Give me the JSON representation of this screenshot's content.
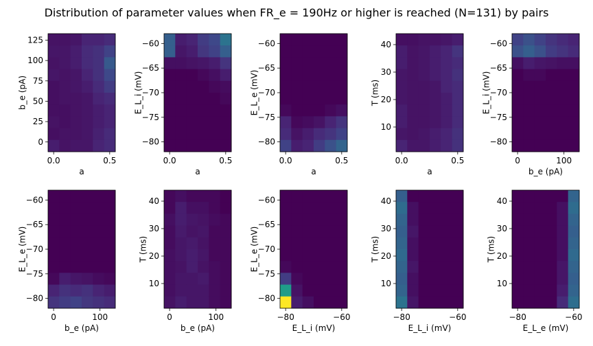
{
  "title": "Distribution of parameter values when FR_e = 190Hz or higher is reached (N=131) by pairs",
  "colormap": [
    "#440154",
    "#482878",
    "#3e4989",
    "#31688e",
    "#26828e",
    "#1f9e89",
    "#35b779",
    "#6ece58",
    "#b5de2b",
    "#fde725"
  ],
  "chart_data": [
    {
      "type": "heatmap",
      "xlabel": "a",
      "ylabel": "b_e (pA)",
      "xlim": [
        -0.05,
        0.55
      ],
      "ylim": [
        -12,
        133
      ],
      "xticks": [
        0.0,
        0.5
      ],
      "xticklabels": [
        "0.0",
        "0.5"
      ],
      "yticks": [
        0,
        25,
        50,
        75,
        100,
        125
      ],
      "yticklabels": [
        "0",
        "25",
        "50",
        "75",
        "100",
        "125"
      ],
      "nx": 6,
      "ny": 10,
      "values": [
        [
          0.05,
          0.05,
          0.06,
          0.1,
          0.1,
          0.12
        ],
        [
          0.06,
          0.06,
          0.08,
          0.12,
          0.14,
          0.2
        ],
        [
          0.05,
          0.06,
          0.08,
          0.12,
          0.14,
          0.28
        ],
        [
          0.06,
          0.05,
          0.06,
          0.1,
          0.14,
          0.22
        ],
        [
          0.04,
          0.05,
          0.06,
          0.08,
          0.12,
          0.18
        ],
        [
          0.04,
          0.05,
          0.05,
          0.06,
          0.1,
          0.12
        ],
        [
          0.04,
          0.04,
          0.05,
          0.06,
          0.08,
          0.1
        ],
        [
          0.05,
          0.04,
          0.05,
          0.06,
          0.08,
          0.1
        ],
        [
          0.04,
          0.05,
          0.05,
          0.06,
          0.09,
          0.12
        ],
        [
          0.08,
          0.05,
          0.06,
          0.06,
          0.1,
          0.12
        ]
      ]
    },
    {
      "type": "heatmap",
      "xlabel": "a",
      "ylabel": "E_L_i (mV)",
      "xlim": [
        -0.05,
        0.55
      ],
      "ylim": [
        -82,
        -58
      ],
      "xticks": [
        0.0,
        0.5
      ],
      "xticklabels": [
        "0.0",
        "0.5"
      ],
      "yticks": [
        -80,
        -75,
        -70,
        -65,
        -60
      ],
      "yticklabels": [
        "−80",
        "−75",
        "−70",
        "−65",
        "−60"
      ],
      "nx": 6,
      "ny": 10,
      "values": [
        [
          0.3,
          0.08,
          0.1,
          0.18,
          0.22,
          0.38
        ],
        [
          0.3,
          0.06,
          0.08,
          0.16,
          0.2,
          0.3
        ],
        [
          0.04,
          0.04,
          0.05,
          0.06,
          0.08,
          0.15
        ],
        [
          0.0,
          0.0,
          0.0,
          0.02,
          0.04,
          0.08
        ],
        [
          0.0,
          0.0,
          0.0,
          0.0,
          0.02,
          0.03
        ],
        [
          0.0,
          0.0,
          0.0,
          0.0,
          0.0,
          0.02
        ],
        [
          0.0,
          0.0,
          0.0,
          0.0,
          0.0,
          0.0
        ],
        [
          0.0,
          0.0,
          0.0,
          0.0,
          0.0,
          0.0
        ],
        [
          0.0,
          0.0,
          0.0,
          0.0,
          0.0,
          0.0
        ],
        [
          0.0,
          0.0,
          0.0,
          0.0,
          0.0,
          0.0
        ]
      ]
    },
    {
      "type": "heatmap",
      "xlabel": "a",
      "ylabel": "E_L_e (mV)",
      "xlim": [
        -0.05,
        0.55
      ],
      "ylim": [
        -82,
        -58
      ],
      "xticks": [
        0.0,
        0.5
      ],
      "xticklabels": [
        "0.0",
        "0.5"
      ],
      "yticks": [
        -80,
        -75,
        -70,
        -65,
        -60
      ],
      "yticklabels": [
        "−80",
        "−75",
        "−70",
        "−65",
        "−60"
      ],
      "nx": 6,
      "ny": 10,
      "values": [
        [
          0.0,
          0.0,
          0.0,
          0.0,
          0.0,
          0.0
        ],
        [
          0.0,
          0.0,
          0.0,
          0.0,
          0.0,
          0.0
        ],
        [
          0.0,
          0.0,
          0.0,
          0.0,
          0.0,
          0.0
        ],
        [
          0.0,
          0.0,
          0.0,
          0.0,
          0.0,
          0.0
        ],
        [
          0.0,
          0.0,
          0.0,
          0.0,
          0.0,
          0.0
        ],
        [
          0.0,
          0.0,
          0.0,
          0.0,
          0.0,
          0.0
        ],
        [
          0.02,
          0.0,
          0.0,
          0.0,
          0.02,
          0.04
        ],
        [
          0.1,
          0.02,
          0.03,
          0.05,
          0.1,
          0.15
        ],
        [
          0.12,
          0.05,
          0.08,
          0.12,
          0.15,
          0.2
        ],
        [
          0.2,
          0.08,
          0.1,
          0.18,
          0.25,
          0.32
        ]
      ]
    },
    {
      "type": "heatmap",
      "xlabel": "a",
      "ylabel": "T (ms)",
      "xlim": [
        -0.05,
        0.55
      ],
      "ylim": [
        1,
        44
      ],
      "xticks": [
        0.0,
        0.5
      ],
      "xticklabels": [
        "0.0",
        "0.5"
      ],
      "yticks": [
        10,
        20,
        30,
        40
      ],
      "yticklabels": [
        "10",
        "20",
        "30",
        "40"
      ],
      "nx": 6,
      "ny": 10,
      "values": [
        [
          0.04,
          0.04,
          0.05,
          0.05,
          0.06,
          0.08
        ],
        [
          0.08,
          0.05,
          0.06,
          0.08,
          0.1,
          0.15
        ],
        [
          0.08,
          0.05,
          0.06,
          0.08,
          0.1,
          0.12
        ],
        [
          0.06,
          0.05,
          0.06,
          0.08,
          0.1,
          0.14
        ],
        [
          0.06,
          0.05,
          0.05,
          0.06,
          0.1,
          0.12
        ],
        [
          0.06,
          0.05,
          0.05,
          0.06,
          0.08,
          0.12
        ],
        [
          0.08,
          0.05,
          0.05,
          0.06,
          0.08,
          0.12
        ],
        [
          0.08,
          0.05,
          0.05,
          0.06,
          0.08,
          0.12
        ],
        [
          0.06,
          0.05,
          0.06,
          0.08,
          0.1,
          0.14
        ],
        [
          0.1,
          0.06,
          0.06,
          0.08,
          0.1,
          0.14
        ]
      ]
    },
    {
      "type": "heatmap",
      "xlabel": "b_e (pA)",
      "ylabel": "E_L_i (mV)",
      "xlim": [
        -12,
        133
      ],
      "ylim": [
        -82,
        -58
      ],
      "xticks": [
        0,
        100
      ],
      "xticklabels": [
        "0",
        "100"
      ],
      "yticks": [
        -80,
        -75,
        -70,
        -65,
        -60
      ],
      "yticklabels": [
        "−80",
        "−75",
        "−70",
        "−65",
        "−60"
      ],
      "nx": 6,
      "ny": 10,
      "values": [
        [
          0.2,
          0.25,
          0.2,
          0.15,
          0.12,
          0.1
        ],
        [
          0.25,
          0.3,
          0.25,
          0.18,
          0.15,
          0.12
        ],
        [
          0.04,
          0.08,
          0.06,
          0.05,
          0.04,
          0.04
        ],
        [
          0.0,
          0.02,
          0.02,
          0.0,
          0.0,
          0.0
        ],
        [
          0.0,
          0.0,
          0.0,
          0.0,
          0.0,
          0.0
        ],
        [
          0.0,
          0.0,
          0.0,
          0.0,
          0.0,
          0.0
        ],
        [
          0.0,
          0.0,
          0.0,
          0.0,
          0.0,
          0.0
        ],
        [
          0.0,
          0.0,
          0.0,
          0.0,
          0.0,
          0.0
        ],
        [
          0.0,
          0.0,
          0.0,
          0.0,
          0.0,
          0.0
        ],
        [
          0.0,
          0.0,
          0.0,
          0.0,
          0.0,
          0.0
        ]
      ]
    },
    {
      "type": "heatmap",
      "xlabel": "b_e (pA)",
      "ylabel": "E_L_e (mV)",
      "xlim": [
        -12,
        133
      ],
      "ylim": [
        -82,
        -58
      ],
      "xticks": [
        0,
        100
      ],
      "xticklabels": [
        "0",
        "100"
      ],
      "yticks": [
        -80,
        -75,
        -70,
        -65,
        -60
      ],
      "yticklabels": [
        "−80",
        "−75",
        "−70",
        "−65",
        "−60"
      ],
      "nx": 6,
      "ny": 10,
      "values": [
        [
          0.0,
          0.0,
          0.0,
          0.0,
          0.0,
          0.0
        ],
        [
          0.0,
          0.0,
          0.0,
          0.0,
          0.0,
          0.0
        ],
        [
          0.0,
          0.0,
          0.0,
          0.0,
          0.0,
          0.0
        ],
        [
          0.0,
          0.0,
          0.0,
          0.0,
          0.0,
          0.0
        ],
        [
          0.0,
          0.0,
          0.0,
          0.0,
          0.0,
          0.0
        ],
        [
          0.0,
          0.0,
          0.0,
          0.0,
          0.0,
          0.0
        ],
        [
          0.0,
          0.0,
          0.0,
          0.0,
          0.0,
          0.0
        ],
        [
          0.02,
          0.08,
          0.06,
          0.05,
          0.03,
          0.02
        ],
        [
          0.1,
          0.14,
          0.12,
          0.14,
          0.1,
          0.08
        ],
        [
          0.15,
          0.18,
          0.2,
          0.16,
          0.14,
          0.12
        ]
      ]
    },
    {
      "type": "heatmap",
      "xlabel": "b_e (pA)",
      "ylabel": "T (ms)",
      "xlim": [
        -12,
        133
      ],
      "ylim": [
        1,
        44
      ],
      "xticks": [
        0,
        100
      ],
      "xticklabels": [
        "0",
        "100"
      ],
      "yticks": [
        10,
        20,
        30,
        40
      ],
      "yticklabels": [
        "10",
        "20",
        "30",
        "40"
      ],
      "nx": 6,
      "ny": 10,
      "values": [
        [
          0.02,
          0.04,
          0.02,
          0.02,
          0.02,
          0.0
        ],
        [
          0.02,
          0.08,
          0.04,
          0.04,
          0.02,
          0.0
        ],
        [
          0.04,
          0.08,
          0.06,
          0.05,
          0.03,
          0.02
        ],
        [
          0.03,
          0.07,
          0.05,
          0.06,
          0.02,
          0.02
        ],
        [
          0.03,
          0.06,
          0.07,
          0.05,
          0.02,
          0.02
        ],
        [
          0.04,
          0.06,
          0.08,
          0.06,
          0.02,
          0.02
        ],
        [
          0.04,
          0.05,
          0.08,
          0.05,
          0.03,
          0.02
        ],
        [
          0.04,
          0.06,
          0.06,
          0.07,
          0.03,
          0.02
        ],
        [
          0.04,
          0.06,
          0.06,
          0.06,
          0.03,
          0.02
        ],
        [
          0.05,
          0.08,
          0.06,
          0.06,
          0.03,
          0.02
        ]
      ]
    },
    {
      "type": "heatmap",
      "xlabel": "E_L_i (mV)",
      "ylabel": "E_L_e (mV)",
      "xlim": [
        -82,
        -58
      ],
      "ylim": [
        -82,
        -58
      ],
      "xticks": [
        -80,
        -60
      ],
      "xticklabels": [
        "−80",
        "−60"
      ],
      "yticks": [
        -80,
        -75,
        -70,
        -65,
        -60
      ],
      "yticklabels": [
        "−80",
        "−75",
        "−70",
        "−65",
        "−60"
      ],
      "nx": 6,
      "ny": 10,
      "values": [
        [
          0.0,
          0.0,
          0.0,
          0.0,
          0.0,
          0.0
        ],
        [
          0.0,
          0.0,
          0.0,
          0.0,
          0.0,
          0.0
        ],
        [
          0.0,
          0.0,
          0.0,
          0.0,
          0.0,
          0.0
        ],
        [
          0.0,
          0.0,
          0.0,
          0.0,
          0.0,
          0.0
        ],
        [
          0.0,
          0.0,
          0.0,
          0.0,
          0.0,
          0.0
        ],
        [
          0.0,
          0.0,
          0.0,
          0.0,
          0.0,
          0.0
        ],
        [
          0.02,
          0.0,
          0.0,
          0.0,
          0.0,
          0.0
        ],
        [
          0.18,
          0.02,
          0.0,
          0.0,
          0.0,
          0.0
        ],
        [
          0.55,
          0.05,
          0.0,
          0.0,
          0.0,
          0.0
        ],
        [
          1.0,
          0.08,
          0.04,
          0.0,
          0.0,
          0.0
        ]
      ]
    },
    {
      "type": "heatmap",
      "xlabel": "E_L_i (mV)",
      "ylabel": "T (ms)",
      "xlim": [
        -82,
        -58
      ],
      "ylim": [
        1,
        44
      ],
      "xticks": [
        -80,
        -60
      ],
      "xticklabels": [
        "−80",
        "−60"
      ],
      "yticks": [
        10,
        20,
        30,
        40
      ],
      "yticklabels": [
        "10",
        "20",
        "30",
        "40"
      ],
      "nx": 6,
      "ny": 10,
      "values": [
        [
          0.3,
          0.0,
          0.0,
          0.0,
          0.0,
          0.0
        ],
        [
          0.35,
          0.04,
          0.0,
          0.0,
          0.0,
          0.0
        ],
        [
          0.32,
          0.04,
          0.0,
          0.0,
          0.0,
          0.0
        ],
        [
          0.3,
          0.06,
          0.0,
          0.0,
          0.0,
          0.0
        ],
        [
          0.32,
          0.04,
          0.0,
          0.0,
          0.0,
          0.0
        ],
        [
          0.34,
          0.04,
          0.0,
          0.0,
          0.0,
          0.0
        ],
        [
          0.32,
          0.06,
          0.0,
          0.0,
          0.0,
          0.0
        ],
        [
          0.3,
          0.04,
          0.0,
          0.0,
          0.0,
          0.0
        ],
        [
          0.32,
          0.04,
          0.0,
          0.0,
          0.0,
          0.0
        ],
        [
          0.38,
          0.06,
          0.0,
          0.0,
          0.0,
          0.0
        ]
      ]
    },
    {
      "type": "heatmap",
      "xlabel": "E_L_e (mV)",
      "ylabel": "T (ms)",
      "xlim": [
        -82,
        -58
      ],
      "ylim": [
        1,
        44
      ],
      "xticks": [
        -80,
        -60
      ],
      "xticklabels": [
        "−80",
        "−60"
      ],
      "yticks": [
        10,
        20,
        30,
        40
      ],
      "yticklabels": [
        "10",
        "20",
        "30",
        "40"
      ],
      "nx": 6,
      "ny": 10,
      "values": [
        [
          0.0,
          0.0,
          0.0,
          0.0,
          0.0,
          0.32
        ],
        [
          0.0,
          0.0,
          0.0,
          0.0,
          0.04,
          0.35
        ],
        [
          0.0,
          0.0,
          0.0,
          0.0,
          0.04,
          0.32
        ],
        [
          0.0,
          0.0,
          0.0,
          0.0,
          0.04,
          0.3
        ],
        [
          0.0,
          0.0,
          0.0,
          0.0,
          0.04,
          0.32
        ],
        [
          0.0,
          0.0,
          0.0,
          0.0,
          0.04,
          0.34
        ],
        [
          0.0,
          0.0,
          0.0,
          0.0,
          0.06,
          0.32
        ],
        [
          0.0,
          0.0,
          0.0,
          0.0,
          0.06,
          0.3
        ],
        [
          0.0,
          0.0,
          0.0,
          0.0,
          0.08,
          0.32
        ],
        [
          0.0,
          0.0,
          0.0,
          0.0,
          0.12,
          0.36
        ]
      ]
    }
  ]
}
